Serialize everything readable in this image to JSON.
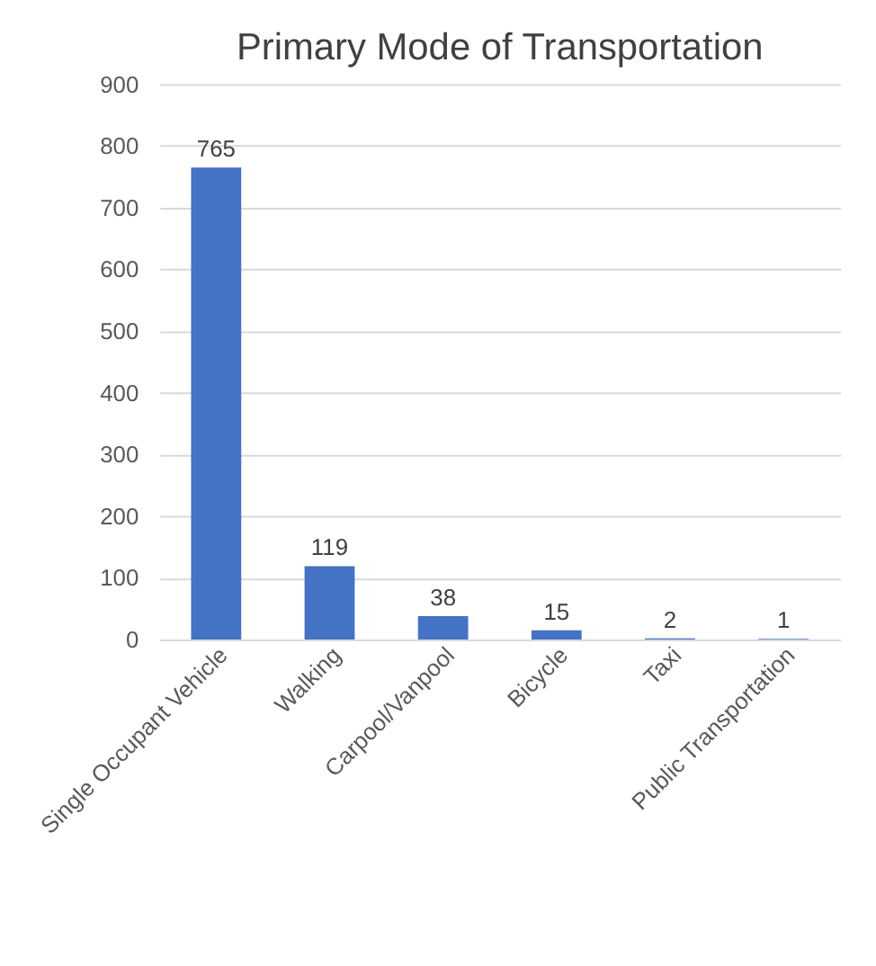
{
  "chart_data": {
    "type": "bar",
    "title": "Primary Mode of Transportation",
    "categories": [
      "Single Occupant Vehicle",
      "Walking",
      "Carpool/Vanpool",
      "Bicycle",
      "Taxi",
      "Public Transportation"
    ],
    "values": [
      765,
      119,
      38,
      15,
      2,
      1
    ],
    "color": "#4472c4",
    "ylim": [
      0,
      900
    ],
    "yticks": [
      0,
      100,
      200,
      300,
      400,
      500,
      600,
      700,
      800,
      900
    ],
    "grid": "y",
    "data_labels": true
  }
}
